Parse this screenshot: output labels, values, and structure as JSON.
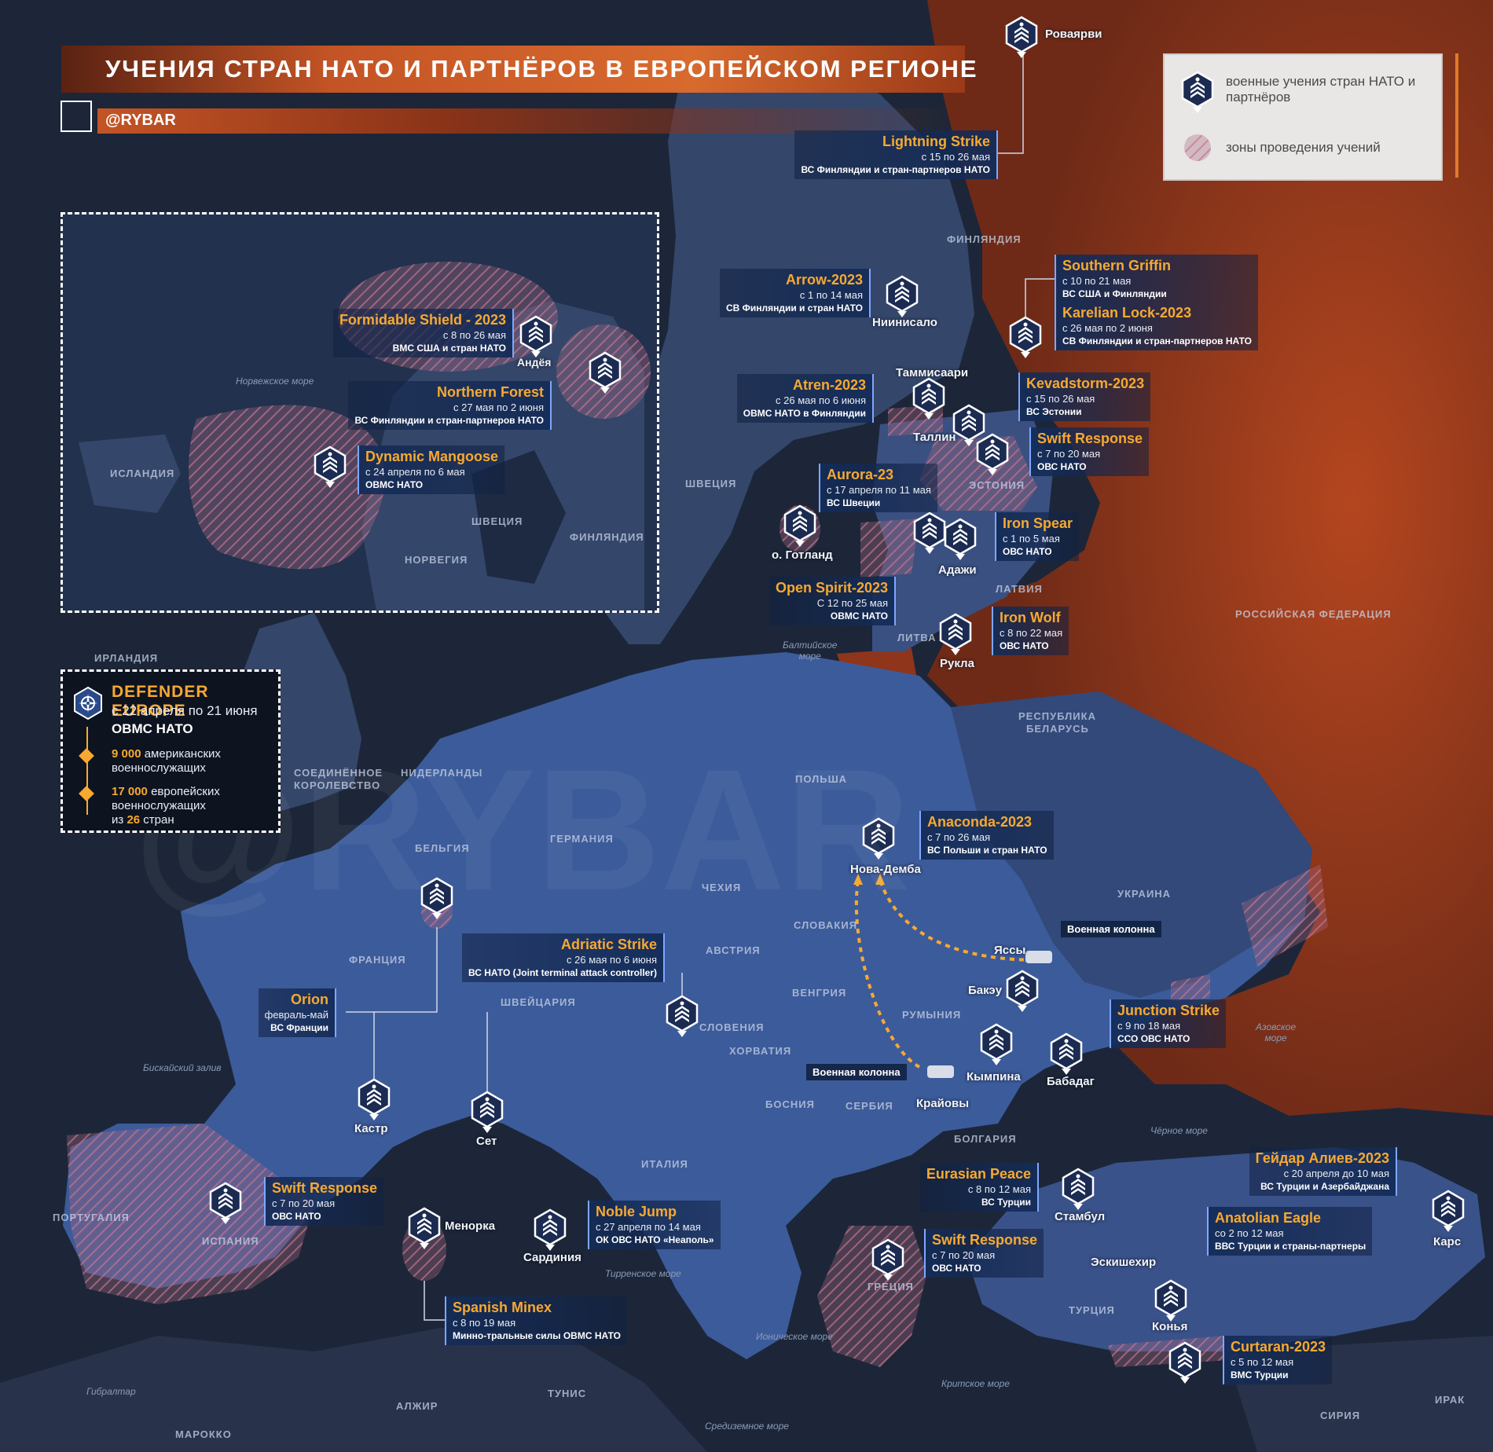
{
  "header": {
    "title": "УЧЕНИЯ СТРАН НАТО И ПАРТНЁРОВ В ЕВРОПЕЙСКОМ РЕГИОНЕ",
    "brand": "@RYBAR"
  },
  "legend": {
    "exercise_label": "военные учения стран НАТО и партнёров",
    "zone_label": "зоны проведения учений"
  },
  "colors": {
    "accent_orange": "#f7a931",
    "russia_red": "#9c3a1e",
    "nato_blue": "#3c5b9a",
    "box_blue": "#183462",
    "zone_pink": "#a8677e"
  },
  "watermark": "@RYBAR",
  "defender": {
    "title": "DEFENDER EUROPE",
    "date": "с 22 апреля по 21 июня",
    "org": "ОВМС НАТО",
    "stat1_num": "9 000",
    "stat1_text_a": "американских",
    "stat1_text_b": "военнослужащих",
    "stat2_num": "17 000",
    "stat2_text_a": "европейских",
    "stat2_text_b": "военнослужащих",
    "stat2_text_c_pre": "из",
    "stat2_text_c_num": "26",
    "stat2_text_c_post": "стран"
  },
  "countries": {
    "finland": "ФИНЛЯНДИЯ",
    "sweden": "ШВЕЦИЯ",
    "estonia": "ЭСТОНИЯ",
    "latvia": "ЛАТВИЯ",
    "lithuania": "ЛИТВА",
    "russia": "РОССИЙСКАЯ ФЕДЕРАЦИЯ",
    "belarus_a": "РЕСПУБЛИКА",
    "belarus_b": "БЕЛАРУСЬ",
    "poland": "ПОЛЬША",
    "ukraine": "УКРАИНА",
    "germany": "ГЕРМАНИЯ",
    "netherlands": "НИДЕРЛАНДЫ",
    "belgium": "БЕЛЬГИЯ",
    "uk_a": "СОЕДИНЁННОЕ",
    "uk_b": "КОРОЛЕВСТВО",
    "ireland": "ИРЛАНДИЯ",
    "france": "ФРАНЦИЯ",
    "switzerland": "ШВЕЙЦАРИЯ",
    "austria": "АВСТРИЯ",
    "czechia": "ЧЕХИЯ",
    "slovakia": "СЛОВАКИЯ",
    "hungary": "ВЕНГРИЯ",
    "romania": "РУМЫНИЯ",
    "slovenia": "СЛОВЕНИЯ",
    "croatia": "ХОРВАТИЯ",
    "bosnia": "БОСНИЯ",
    "serbia": "СЕРБИЯ",
    "bulgaria": "БОЛГАРИЯ",
    "italy": "ИТАЛИЯ",
    "spain": "ИСПАНИЯ",
    "portugal": "ПОРТУГАЛИЯ",
    "greece": "ГРЕЦИЯ",
    "turkey": "ТУРЦИЯ",
    "algeria": "АЛЖИР",
    "tunisia": "ТУНИС",
    "morocco": "МАРОККО",
    "syria": "СИРИЯ",
    "iraq": "ИРАК"
  },
  "seas": {
    "baltic_a": "Балтийское",
    "baltic_b": "море",
    "biscay": "Бискайский залив",
    "black": "Чёрное море",
    "azov_a": "Азовское",
    "azov_b": "море",
    "tyrrhenian": "Тирренское море",
    "ionian": "Ионическое море",
    "cretan": "Критское море",
    "mediterranean": "Средиземное море",
    "gibraltar": "Гибралтар"
  },
  "cities": {
    "rovaarvi": "Роваярви",
    "niinisalo": "Ниинисало",
    "tammisaari": "Таммисаари",
    "tallinn": "Таллин",
    "gotland": "о. Готланд",
    "adazi": "Адажи",
    "rukla": "Рукла",
    "nova_demba": "Нова-Демба",
    "iasi": "Яссы",
    "bacau": "Бакэу",
    "campina": "Кымпина",
    "babadag": "Бабадаг",
    "craiova": "Крайовы",
    "kastr": "Кастр",
    "set": "Сет",
    "menorca": "Менорка",
    "sardinia": "Сардиния",
    "istanbul": "Стамбул",
    "eskisehir": "Эскишехир",
    "konya": "Конья",
    "kars": "Карс"
  },
  "columns": {
    "north": "Военная колонна",
    "south": "Военная колонна"
  },
  "inset": {
    "norwegian_sea": "Норвежское море",
    "iceland": "ИСЛАНДИЯ",
    "sweden": "ШВЕЦИЯ",
    "finland": "ФИНЛЯНДИЯ",
    "norway": "НОРВЕГИЯ",
    "andoya": "Андёя",
    "formidable": {
      "title": "Formidable Shield - 2023",
      "date": "с 8 по 26 мая",
      "org": "ВМС США и стран НАТО"
    },
    "northern_forest": {
      "title": "Northern Forest",
      "date": "с 27 мая по 2 июня",
      "org": "ВС Финляндии и стран-партнеров НАТО"
    },
    "dynamic_mangoose": {
      "title": "Dynamic Mangoose",
      "date": "с 24 апреля по 6 мая",
      "org": "ОВМС НАТО"
    }
  },
  "exercises": {
    "lightning_strike": {
      "title": "Lightning Strike",
      "date": "с 15 по 26 мая",
      "org": "ВС Финляндии и стран-партнеров НАТО"
    },
    "southern_griffin": {
      "title": "Southern Griffin",
      "date": "с 10 по 21 мая",
      "org": "ВС США и Финляндии"
    },
    "karelian_lock": {
      "title": "Karelian Lock-2023",
      "date": "с 26 мая по 2 июня",
      "org": "СВ Финляндии и стран-партнеров НАТО"
    },
    "arrow": {
      "title": "Arrow-2023",
      "date": "с 1 по 14 мая",
      "org": "СВ Финляндии и стран НАТО"
    },
    "atren": {
      "title": "Atren-2023",
      "date": "с 26 мая по 6 июня",
      "org": "ОВМС НАТО в Финляндии"
    },
    "kevadstorm": {
      "title": "Kevadstorm-2023",
      "date": "с 15 по 26 мая",
      "org": "ВС Эстонии"
    },
    "swift_response_est": {
      "title": "Swift Response",
      "date": "с 7 по 20 мая",
      "org": "ОВС НАТО"
    },
    "aurora": {
      "title": "Aurora-23",
      "date": "с 17 апреля по 11 мая",
      "org": "ВС Швеции"
    },
    "iron_spear": {
      "title": "Iron Spear",
      "date": "с 1 по 5 мая",
      "org": "ОВС НАТО"
    },
    "open_spirit": {
      "title": "Open Spirit-2023",
      "date": "С 12 по 25 мая",
      "org": "ОВМС НАТО"
    },
    "iron_wolf": {
      "title": "Iron Wolf",
      "date": "с 8 по 22 мая",
      "org": "ОВС НАТО"
    },
    "anaconda": {
      "title": "Anaconda-2023",
      "date": "с 7 по 26 мая",
      "org": "ВС Польши и стран НАТО"
    },
    "adriatic_strike": {
      "title": "Adriatic Strike",
      "date": "с 26 мая по 6 июня",
      "org": "ВС НАТО (Joint terminal attack controller)"
    },
    "orion": {
      "title": "Orion",
      "date": "февраль-май",
      "org": "ВС Франции"
    },
    "junction_strike": {
      "title": "Junction Strike",
      "date": "с 9 по 18 мая",
      "org": "ССО ОВС НАТО"
    },
    "swift_response_esp": {
      "title": "Swift Response",
      "date": "с 7 по 20 мая",
      "org": "ОВС НАТО"
    },
    "noble_jump": {
      "title": "Noble Jump",
      "date": "с 27 апреля по 14 мая",
      "org": "ОК ОВС НАТО «Неаполь»"
    },
    "spanish_minex": {
      "title": "Spanish Minex",
      "date": "с 8 по 19 мая",
      "org": "Минно-тральные силы ОВМС НАТО"
    },
    "eurasian_peace": {
      "title": "Eurasian Peace",
      "date": "с 8 по 12 мая",
      "org": "ВС Турции"
    },
    "heydar_aliyev": {
      "title": "Гейдар Алиев-2023",
      "date": "с 20 апреля до 10 мая",
      "org": "ВС Турции и Азербайджана"
    },
    "anatolian_eagle": {
      "title": "Anatolian Eagle",
      "date": "со 2 по 12 мая",
      "org": "ВВС Турции и страны-партнеры"
    },
    "swift_response_gr": {
      "title": "Swift Response",
      "date": "с 7 по 20 мая",
      "org": "ОВС НАТО"
    },
    "curtaran": {
      "title": "Curtaran-2023",
      "date": "с 5 по 12 мая",
      "org": "ВМС Турции"
    }
  }
}
